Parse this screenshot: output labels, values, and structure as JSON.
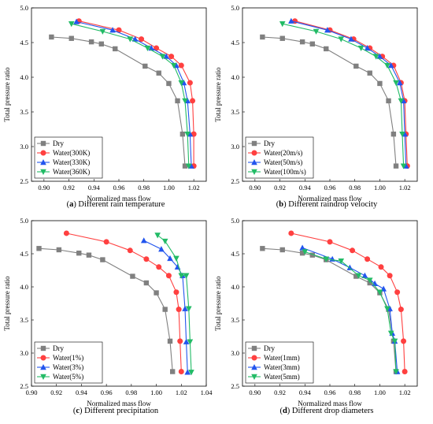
{
  "chart_data": [
    {
      "type": "line",
      "panel": "a",
      "caption_letter": "a",
      "caption_text": "Different rain temperature",
      "xlabel": "Normalized mass flow",
      "ylabel": "Total pressure ratio",
      "xlim": [
        0.89,
        1.03
      ],
      "ylim": [
        2.5,
        5.0
      ],
      "xticks": [
        0.9,
        0.92,
        0.94,
        0.96,
        0.98,
        1.0,
        1.02
      ],
      "yticks": [
        2.5,
        3.0,
        3.5,
        4.0,
        4.5,
        5.0
      ],
      "legend_position": "lower-left",
      "series": [
        {
          "name": "Dry",
          "color": "#808080",
          "marker": "square",
          "x": [
            0.906,
            0.922,
            0.938,
            0.946,
            0.957,
            0.981,
            0.992,
            1.0,
            1.007,
            1.011,
            1.013
          ],
          "y": [
            4.58,
            4.56,
            4.51,
            4.48,
            4.41,
            4.16,
            4.06,
            3.91,
            3.66,
            3.18,
            2.72
          ]
        },
        {
          "name": "Water(300K)",
          "color": "#ff4040",
          "marker": "circle",
          "x": [
            0.928,
            0.96,
            0.978,
            0.99,
            1.002,
            1.01,
            1.017,
            1.019,
            1.02,
            1.02
          ],
          "y": [
            4.81,
            4.68,
            4.55,
            4.42,
            4.3,
            4.17,
            3.92,
            3.66,
            3.18,
            2.72
          ]
        },
        {
          "name": "Water(330K)",
          "color": "#2255ee",
          "marker": "triangle-up",
          "x": [
            0.926,
            0.955,
            0.973,
            0.986,
            0.998,
            1.006,
            1.012,
            1.015,
            1.017,
            1.018
          ],
          "y": [
            4.8,
            4.68,
            4.55,
            4.42,
            4.3,
            4.17,
            3.92,
            3.66,
            3.18,
            2.72
          ]
        },
        {
          "name": "Water(360K)",
          "color": "#22bb66",
          "marker": "triangle-down",
          "x": [
            0.922,
            0.947,
            0.969,
            0.983,
            0.995,
            1.004,
            1.01,
            1.013,
            1.015,
            1.016
          ],
          "y": [
            4.77,
            4.66,
            4.55,
            4.42,
            4.3,
            4.17,
            3.92,
            3.66,
            3.18,
            2.72
          ]
        }
      ]
    },
    {
      "type": "line",
      "panel": "b",
      "caption_letter": "b",
      "caption_text": "Different raindrop velocity",
      "xlabel": "Normalized mass flow",
      "ylabel": "Total pressure ratio",
      "xlim": [
        0.89,
        1.03
      ],
      "ylim": [
        2.5,
        5.0
      ],
      "xticks": [
        0.9,
        0.92,
        0.94,
        0.96,
        0.98,
        1.0,
        1.02
      ],
      "yticks": [
        2.5,
        3.0,
        3.5,
        4.0,
        4.5,
        5.0
      ],
      "legend_position": "lower-left",
      "series": [
        {
          "name": "Dry",
          "color": "#808080",
          "marker": "square",
          "x": [
            0.906,
            0.922,
            0.938,
            0.946,
            0.957,
            0.981,
            0.992,
            1.0,
            1.007,
            1.011,
            1.013
          ],
          "y": [
            4.58,
            4.56,
            4.51,
            4.48,
            4.41,
            4.16,
            4.06,
            3.91,
            3.66,
            3.18,
            2.72
          ]
        },
        {
          "name": "Water(20m/s)",
          "color": "#ff4040",
          "marker": "circle",
          "x": [
            0.932,
            0.96,
            0.979,
            0.992,
            1.002,
            1.011,
            1.017,
            1.02,
            1.021,
            1.022
          ],
          "y": [
            4.81,
            4.68,
            4.55,
            4.42,
            4.3,
            4.17,
            3.92,
            3.66,
            3.18,
            2.72
          ]
        },
        {
          "name": "Water(50m/s)",
          "color": "#2255ee",
          "marker": "triangle-up",
          "x": [
            0.929,
            0.958,
            0.977,
            0.99,
            1.0,
            1.009,
            1.016,
            1.019,
            1.02,
            1.021
          ],
          "y": [
            4.81,
            4.68,
            4.55,
            4.42,
            4.3,
            4.17,
            3.92,
            3.66,
            3.18,
            2.72
          ]
        },
        {
          "name": "Water(100m/s)",
          "color": "#22bb66",
          "marker": "triangle-down",
          "x": [
            0.922,
            0.949,
            0.969,
            0.985,
            0.997,
            1.006,
            1.013,
            1.017,
            1.018,
            1.019
          ],
          "y": [
            4.77,
            4.66,
            4.55,
            4.42,
            4.3,
            4.17,
            3.92,
            3.66,
            3.18,
            2.72
          ]
        }
      ]
    },
    {
      "type": "line",
      "panel": "c",
      "caption_letter": "c",
      "caption_text": "Different precipitation",
      "xlabel": "Normalized mass flow",
      "ylabel": "Total pressure ratio",
      "xlim": [
        0.9,
        1.04
      ],
      "ylim": [
        2.5,
        5.0
      ],
      "xticks": [
        0.9,
        0.92,
        0.94,
        0.96,
        0.98,
        1.0,
        1.02,
        1.04
      ],
      "yticks": [
        2.5,
        3.0,
        3.5,
        4.0,
        4.5,
        5.0
      ],
      "legend_position": "lower-left",
      "series": [
        {
          "name": "Dry",
          "color": "#808080",
          "marker": "square",
          "x": [
            0.906,
            0.922,
            0.938,
            0.946,
            0.957,
            0.981,
            0.992,
            1.0,
            1.007,
            1.011,
            1.013
          ],
          "y": [
            4.58,
            4.56,
            4.51,
            4.48,
            4.41,
            4.16,
            4.06,
            3.91,
            3.66,
            3.18,
            2.72
          ]
        },
        {
          "name": "Water(1%)",
          "color": "#ff4040",
          "marker": "circle",
          "x": [
            0.928,
            0.96,
            0.979,
            0.992,
            1.002,
            1.01,
            1.016,
            1.018,
            1.019,
            1.02
          ],
          "y": [
            4.81,
            4.68,
            4.55,
            4.42,
            4.3,
            4.17,
            3.92,
            3.66,
            3.18,
            2.72
          ]
        },
        {
          "name": "Water(3%)",
          "color": "#2255ee",
          "marker": "triangle-up",
          "x": [
            0.99,
            1.004,
            1.011,
            1.017,
            1.021,
            1.023,
            1.024,
            1.025
          ],
          "y": [
            4.7,
            4.57,
            4.43,
            4.3,
            4.17,
            3.67,
            3.17,
            2.71
          ]
        },
        {
          "name": "Water(5%)",
          "color": "#22bb66",
          "marker": "triangle-down",
          "x": [
            1.001,
            1.007,
            1.016,
            1.02,
            1.024,
            1.026,
            1.027,
            1.028
          ],
          "y": [
            4.78,
            4.69,
            4.43,
            4.17,
            4.17,
            3.67,
            3.17,
            2.71
          ]
        }
      ]
    },
    {
      "type": "line",
      "panel": "d",
      "caption_letter": "d",
      "caption_text": "Different drop diameters",
      "xlabel": "Normalized mass flow",
      "ylabel": "Total pressure ratio",
      "xlim": [
        0.89,
        1.03
      ],
      "ylim": [
        2.5,
        5.0
      ],
      "xticks": [
        0.9,
        0.92,
        0.94,
        0.96,
        0.98,
        1.0,
        1.02
      ],
      "yticks": [
        2.5,
        3.0,
        3.5,
        4.0,
        4.5,
        5.0
      ],
      "legend_position": "lower-left",
      "series": [
        {
          "name": "Dry",
          "color": "#808080",
          "marker": "square",
          "x": [
            0.906,
            0.922,
            0.938,
            0.946,
            0.957,
            0.981,
            0.992,
            1.0,
            1.007,
            1.011,
            1.013
          ],
          "y": [
            4.58,
            4.56,
            4.51,
            4.48,
            4.41,
            4.16,
            4.06,
            3.91,
            3.66,
            3.18,
            2.72
          ]
        },
        {
          "name": "Water(1mm)",
          "color": "#ff4040",
          "marker": "circle",
          "x": [
            0.929,
            0.96,
            0.978,
            0.99,
            1.001,
            1.008,
            1.014,
            1.017,
            1.019,
            1.02
          ],
          "y": [
            4.81,
            4.68,
            4.55,
            4.42,
            4.3,
            4.17,
            3.92,
            3.66,
            3.18,
            2.72
          ]
        },
        {
          "name": "Water(3mm)",
          "color": "#2255ee",
          "marker": "triangle-up",
          "x": [
            0.938,
            0.962,
            0.976,
            0.988,
            0.996,
            1.003,
            1.008,
            1.01,
            1.012,
            1.014
          ],
          "y": [
            4.59,
            4.42,
            4.29,
            4.17,
            4.05,
            3.97,
            3.67,
            3.3,
            3.18,
            2.72
          ]
        },
        {
          "name": "Water(5mm)",
          "color": "#22bb66",
          "marker": "triangle-down",
          "x": [
            0.94,
            0.957,
            0.969,
            0.983,
            0.992,
            1.0,
            1.006,
            1.009,
            1.012,
            1.013
          ],
          "y": [
            4.53,
            4.42,
            4.39,
            4.17,
            4.1,
            3.92,
            3.67,
            3.3,
            3.18,
            2.72
          ]
        }
      ]
    }
  ]
}
